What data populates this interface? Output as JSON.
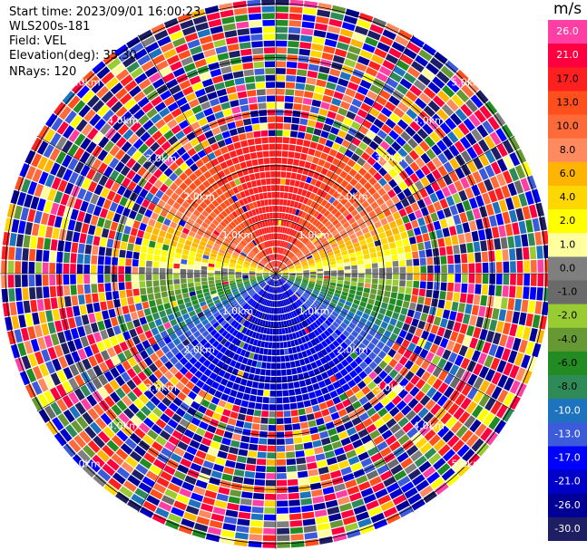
{
  "info": {
    "start_time": "Start time: 2023/09/01 16:00:23",
    "instrument": "WLS200s-181",
    "field": "Field: VEL",
    "elevation": "Elevation(deg): 35.30",
    "nrays": "NRays: 120"
  },
  "colorbar": {
    "unit": "m/s",
    "ticks": [
      "26.0",
      "21.0",
      "17.0",
      "13.0",
      "10.0",
      "8.0",
      "6.0",
      "4.0",
      "2.0",
      "1.0",
      "0.0",
      "-1.0",
      "-2.0",
      "-4.0",
      "-6.0",
      "-8.0",
      "-10.0",
      "-13.0",
      "-17.0",
      "-21.0",
      "-26.0",
      "-30.0"
    ],
    "colors": [
      "#ff3fa4",
      "#fe0040",
      "#fe2020",
      "#ff4f1c",
      "#ff6a3a",
      "#ff8a5f",
      "#ffb400",
      "#ffd700",
      "#ffff00",
      "#ffff9f",
      "#7f7f7f",
      "#6a6a6a",
      "#99cc33",
      "#669933",
      "#228b22",
      "#2e8b57",
      "#1e73be",
      "#3b5bdb",
      "#0000ff",
      "#0000c8",
      "#000096",
      "#1e1e64"
    ]
  },
  "chart_data": {
    "type": "heatmap",
    "projection": "polar PPI scan",
    "field": "VEL",
    "units": "m/s",
    "elevation_deg": 35.3,
    "n_rays": 120,
    "range_rings_km": [
      1.0,
      2.0,
      3.0,
      4.0,
      5.0
    ],
    "range_labels": [
      "1.0km",
      "2.0km",
      "3.0km",
      "4.0km",
      "5.0km"
    ],
    "max_range_km": 5.0,
    "near_field_pattern": "velocity ~ +21 m/s toward north, ~0 m/s east-west, ~ -17 m/s toward south; noisy beyond ~2.6 km",
    "color_scale_min": -30.0,
    "color_scale_max": 26.0
  }
}
